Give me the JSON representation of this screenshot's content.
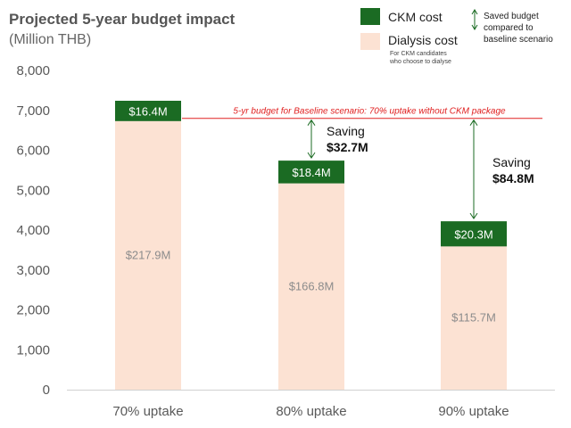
{
  "chart_data": {
    "type": "bar",
    "stacked": true,
    "title": "Projected 5-year budget impact",
    "subtitle": "(Million THB)",
    "categories": [
      "70% uptake",
      "80% uptake",
      "90% uptake"
    ],
    "series": [
      {
        "name": "Dialysis cost",
        "values": [
          6730,
          5170,
          3590
        ],
        "labels": [
          "$217.9M",
          "$166.8M",
          "$115.7M"
        ],
        "color": "#fce2d3"
      },
      {
        "name": "CKM cost",
        "values": [
          510,
          570,
          630
        ],
        "labels": [
          "$16.4M",
          "$18.4M",
          "$20.3M"
        ],
        "color": "#1b6b23"
      }
    ],
    "yticks": [
      "0",
      "1,000",
      "2,000",
      "3,000",
      "4,000",
      "5,000",
      "6,000",
      "7,000",
      "8,000"
    ],
    "ylim": [
      0,
      8000
    ],
    "legend": {
      "ckm": "CKM cost",
      "dialysis": "Dialysis cost",
      "dialysis_note_1": "For CKM candidates",
      "dialysis_note_2": "who choose to dialyse",
      "saved_1": "Saved budget",
      "saved_2": "compared to",
      "saved_3": "baseline scenario",
      "position": "top-right"
    },
    "baseline": {
      "value": 6800,
      "label": "5-yr budget for Baseline scenario: 70% uptake without CKM package",
      "color": "#e02020"
    },
    "savings": [
      {
        "category": "80% uptake",
        "word": "Saving",
        "value": "$32.7M"
      },
      {
        "category": "90% uptake",
        "word": "Saving",
        "value": "$84.8M"
      }
    ],
    "grid": false
  }
}
